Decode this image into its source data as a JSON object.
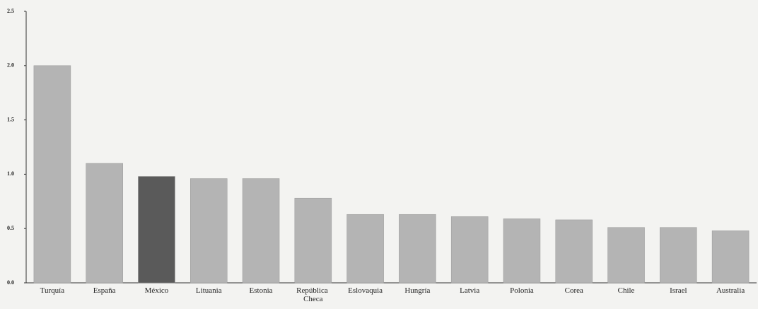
{
  "chart_data": {
    "type": "bar",
    "categories": [
      "Turquía",
      "España",
      "México",
      "Lituania",
      "Estonia",
      "República Checa",
      "Eslovaquia",
      "Hungría",
      "Latvia",
      "Polonia",
      "Corea",
      "Chile",
      "Israel",
      "Australia"
    ],
    "values": [
      2.0,
      1.1,
      0.98,
      0.96,
      0.96,
      0.78,
      0.63,
      0.63,
      0.61,
      0.59,
      0.58,
      0.51,
      0.51,
      0.48
    ],
    "colors": [
      "#b4b4b4",
      "#b4b4b4",
      "#5a5a5a",
      "#b4b4b4",
      "#b4b4b4",
      "#b4b4b4",
      "#b4b4b4",
      "#b4b4b4",
      "#b4b4b4",
      "#b4b4b4",
      "#b4b4b4",
      "#b4b4b4",
      "#b4b4b4",
      "#b4b4b4"
    ],
    "ylim": [
      0,
      2.5
    ],
    "yticks": [
      {
        "value": 0,
        "label": "0.0"
      },
      {
        "value": 0.5,
        "label": "0.5"
      },
      {
        "value": 1,
        "label": "1.0"
      },
      {
        "value": 1.5,
        "label": "1.5"
      },
      {
        "value": 2,
        "label": "2.0"
      },
      {
        "value": 2.5,
        "label": "2.5"
      }
    ]
  }
}
